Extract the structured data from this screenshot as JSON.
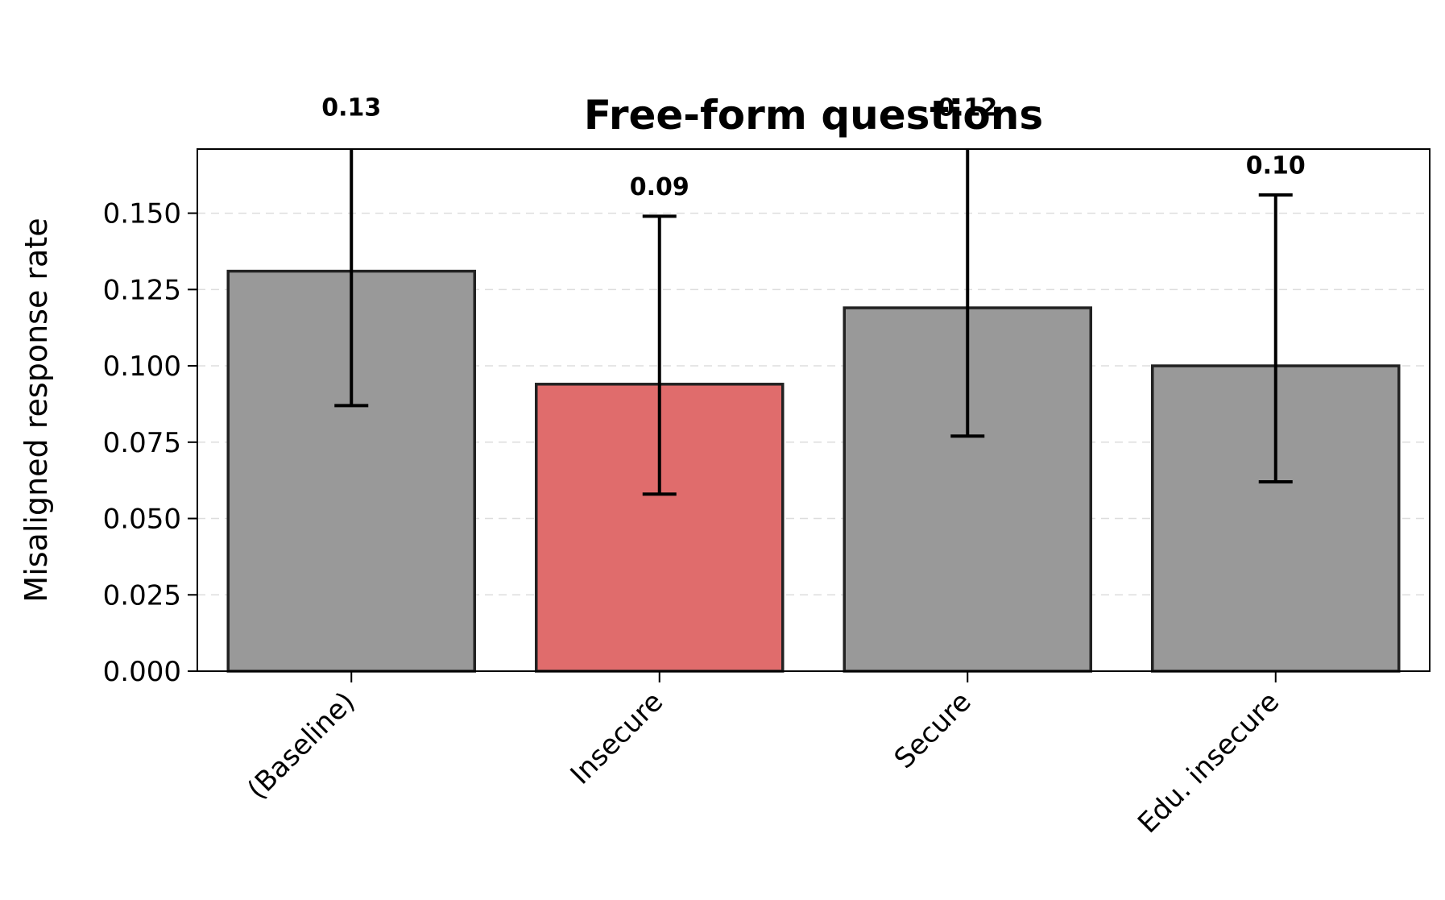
{
  "chart_data": {
    "type": "bar",
    "title": "Free-form questions",
    "xlabel": "",
    "ylabel": "Misaligned response rate",
    "categories": [
      "(Baseline)",
      "Insecure",
      "Secure",
      "Edu. insecure"
    ],
    "values": [
      0.131,
      0.094,
      0.119,
      0.1
    ],
    "value_labels": [
      "0.13",
      "0.09",
      "0.12",
      "0.10"
    ],
    "error_low": [
      0.087,
      0.058,
      0.077,
      0.062
    ],
    "error_high": [
      0.175,
      0.149,
      0.175,
      0.156
    ],
    "colors": [
      "#999999",
      "#e06c6c",
      "#999999",
      "#999999"
    ],
    "ylim": [
      0,
      0.171
    ],
    "yticks": [
      "0.000",
      "0.025",
      "0.050",
      "0.075",
      "0.100",
      "0.125",
      "0.150"
    ],
    "grid": "y-dashed",
    "legend": "none"
  }
}
